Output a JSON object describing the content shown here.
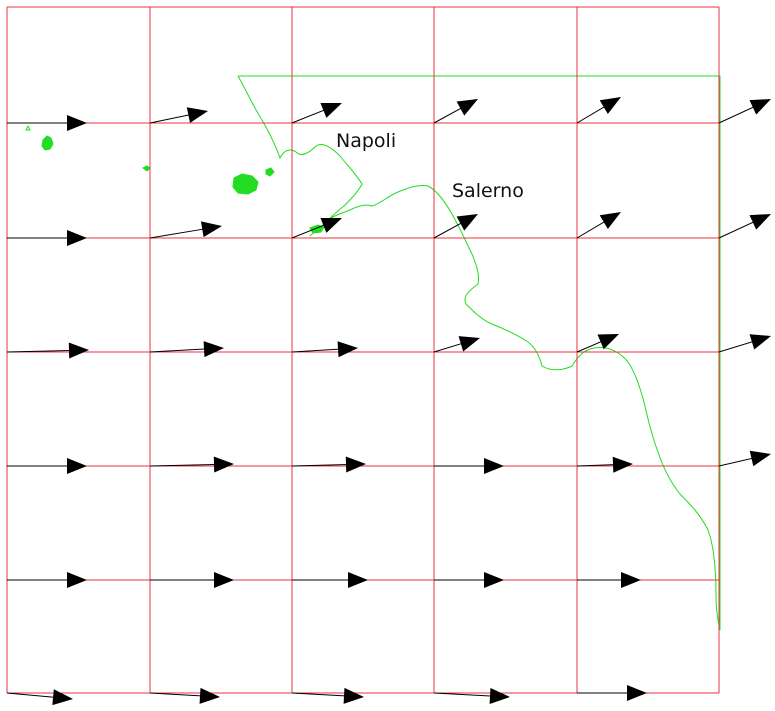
{
  "map": {
    "colors": {
      "grid": "#e8343f",
      "coast": "#22dd22",
      "arrow": "#000000",
      "background": "#ffffff"
    },
    "labels": [
      {
        "id": "napoli",
        "text": "Napoli"
      },
      {
        "id": "salerno",
        "text": "Salerno"
      }
    ]
  }
}
